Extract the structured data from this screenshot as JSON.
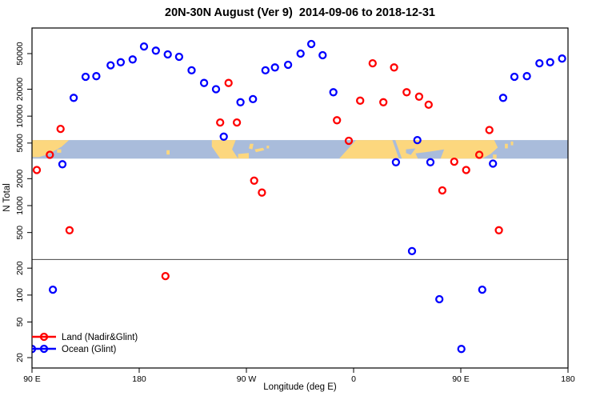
{
  "title": "20N-30N August (Ver 9)  2014-09-06 to 2018-12-31",
  "axes": {
    "xlabel": "Longitude (deg E)",
    "ylabel": "N Total",
    "x_ticks": [
      90,
      180,
      270,
      360,
      450,
      540
    ],
    "x_tick_labels": [
      "90 E",
      "180",
      "90 W",
      "0",
      "90 E",
      "180"
    ],
    "x_range": [
      90,
      540
    ],
    "y_ticks": [
      20,
      50,
      100,
      200,
      500,
      1000,
      2000,
      5000,
      10000,
      20000,
      50000
    ],
    "y_tick_labels": [
      "20",
      "50",
      "100",
      "200",
      "500",
      "1000",
      "2000",
      "5000",
      "10000",
      "20000",
      "50000"
    ],
    "y_scale": "log10",
    "y_log_range": [
      1.185,
      4.985
    ]
  },
  "reference_line": {
    "value": 250,
    "color": "#444444"
  },
  "legend": {
    "items": [
      {
        "label": "Land (Nadir&Glint)",
        "color": "#FF0000"
      },
      {
        "label": "Ocean (Glint)",
        "color": "#0000FF"
      }
    ]
  },
  "map_band": {
    "top_value": 5400,
    "bottom_value": 3350,
    "ocean_color": "#A9BCDB",
    "land_color": "#FCD77E",
    "land_polygons": [
      [
        [
          90,
          0
        ],
        [
          121,
          0
        ],
        [
          115,
          0.35
        ],
        [
          104,
          0.75
        ],
        [
          96,
          0.92
        ],
        [
          90,
          0.92
        ]
      ],
      [
        [
          111,
          0.5
        ],
        [
          114.5,
          0.5
        ],
        [
          114.5,
          0.68
        ],
        [
          111,
          0.68
        ]
      ],
      [
        [
          203,
          0.55
        ],
        [
          205.5,
          0.55
        ],
        [
          205.5,
          0.78
        ],
        [
          203,
          0.78
        ]
      ],
      [
        [
          241,
          0
        ],
        [
          261,
          0
        ],
        [
          258,
          0.5
        ],
        [
          263,
          1
        ],
        [
          248,
          1
        ],
        [
          241,
          0.35
        ]
      ],
      [
        [
          263,
          0.75
        ],
        [
          272,
          0.7
        ],
        [
          272,
          1
        ],
        [
          263,
          1
        ]
      ],
      [
        [
          273,
          0.2
        ],
        [
          276,
          0.2
        ],
        [
          275,
          0.5
        ],
        [
          272,
          0.45
        ]
      ],
      [
        [
          277,
          0.5
        ],
        [
          284,
          0.42
        ],
        [
          285,
          0.55
        ],
        [
          278,
          0.65
        ]
      ],
      [
        [
          287,
          0.3
        ],
        [
          289,
          0.3
        ],
        [
          289,
          0.45
        ],
        [
          287,
          0.45
        ]
      ],
      [
        [
          362,
          0
        ],
        [
          478,
          0
        ],
        [
          481,
          0.4
        ],
        [
          475,
          0.75
        ],
        [
          468,
          1
        ],
        [
          348,
          1
        ]
      ],
      [
        [
          487,
          0.2
        ],
        [
          489.5,
          0.2
        ],
        [
          489.5,
          0.45
        ],
        [
          487,
          0.45
        ]
      ],
      [
        [
          492,
          0.08
        ],
        [
          494,
          0.08
        ],
        [
          494,
          0.28
        ],
        [
          492,
          0.28
        ]
      ],
      [
        [
          477,
          0.78
        ],
        [
          480,
          0.78
        ],
        [
          480,
          1
        ],
        [
          477,
          1
        ]
      ]
    ],
    "ocean_notches": [
      [
        [
          392.5,
          0
        ],
        [
          395,
          0
        ],
        [
          400.5,
          1
        ],
        [
          398,
          1
        ]
      ],
      [
        [
          404,
          0.5
        ],
        [
          412,
          0.45
        ],
        [
          408,
          0.8
        ],
        [
          404,
          0.7
        ]
      ],
      [
        [
          412,
          0.72
        ],
        [
          424,
          0.62
        ],
        [
          436,
          0.5
        ],
        [
          433,
          1
        ],
        [
          414,
          1
        ]
      ]
    ]
  },
  "chart_data": {
    "type": "scatter",
    "title": "20N-30N August (Ver 9)  2014-09-06 to 2018-12-31",
    "xlabel": "Longitude (deg E)",
    "ylabel": "N Total",
    "x_note": "axis runs 90E -> 180 -> 90W -> 0 -> 90E -> 180 (450 deg span, values continue past 360)",
    "series": [
      {
        "name": "Land (Nadir&Glint)",
        "color": "#FF0000",
        "points": [
          [
            94,
            2500
          ],
          [
            105,
            3700
          ],
          [
            114,
            7200
          ],
          [
            121.5,
            530
          ],
          [
            202,
            163
          ],
          [
            248,
            8500
          ],
          [
            255,
            23500
          ],
          [
            262,
            8500
          ],
          [
            276.5,
            1900
          ],
          [
            283,
            1400
          ],
          [
            346,
            9000
          ],
          [
            356,
            5300
          ],
          [
            365.5,
            14900
          ],
          [
            376,
            39000
          ],
          [
            385,
            14300
          ],
          [
            394,
            35000
          ],
          [
            404.5,
            18500
          ],
          [
            415,
            16500
          ],
          [
            423,
            13400
          ],
          [
            434.5,
            1480
          ],
          [
            444.5,
            3100
          ],
          [
            454.5,
            2500
          ],
          [
            465.5,
            3700
          ],
          [
            474,
            7000
          ],
          [
            482,
            530
          ]
        ]
      },
      {
        "name": "Ocean (Glint)",
        "color": "#0000FF",
        "points": [
          [
            90,
            25
          ],
          [
            107.5,
            115
          ],
          [
            115.5,
            2900
          ],
          [
            125,
            16000
          ],
          [
            135,
            27500
          ],
          [
            144,
            28000
          ],
          [
            156,
            37000
          ],
          [
            164.5,
            40000
          ],
          [
            174.5,
            43000
          ],
          [
            184,
            60000
          ],
          [
            194,
            54000
          ],
          [
            204,
            49000
          ],
          [
            213.5,
            46000
          ],
          [
            224,
            32500
          ],
          [
            234.5,
            23500
          ],
          [
            244.5,
            20000
          ],
          [
            251,
            5900
          ],
          [
            265,
            14300
          ],
          [
            275.5,
            15500
          ],
          [
            286,
            32500
          ],
          [
            294,
            35000
          ],
          [
            305,
            37500
          ],
          [
            315.5,
            50000
          ],
          [
            324.5,
            64000
          ],
          [
            334,
            48000
          ],
          [
            343,
            18500
          ],
          [
            395.5,
            3050
          ],
          [
            409,
            310
          ],
          [
            413.5,
            5400
          ],
          [
            424.5,
            3050
          ],
          [
            432,
            90
          ],
          [
            450.5,
            25
          ],
          [
            468,
            115
          ],
          [
            477,
            2950
          ],
          [
            485.5,
            16000
          ],
          [
            495,
            27500
          ],
          [
            505.5,
            28000
          ],
          [
            516,
            39000
          ],
          [
            525,
            40000
          ],
          [
            535,
            44000
          ]
        ]
      }
    ]
  }
}
